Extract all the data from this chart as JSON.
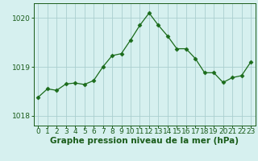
{
  "x": [
    0,
    1,
    2,
    3,
    4,
    5,
    6,
    7,
    8,
    9,
    10,
    11,
    12,
    13,
    14,
    15,
    16,
    17,
    18,
    19,
    20,
    21,
    22,
    23
  ],
  "y": [
    1018.38,
    1018.55,
    1018.52,
    1018.65,
    1018.67,
    1018.64,
    1018.72,
    1019.0,
    1019.23,
    1019.27,
    1019.55,
    1019.85,
    1020.1,
    1019.85,
    1019.63,
    1019.37,
    1019.37,
    1019.17,
    1018.88,
    1018.88,
    1018.68,
    1018.78,
    1018.82,
    1019.1
  ],
  "line_color": "#1a6b1a",
  "marker": "D",
  "marker_size": 2.5,
  "bg_color": "#d6f0ef",
  "grid_color": "#aacfcf",
  "xlabel": "Graphe pression niveau de la mer (hPa)",
  "xlabel_color": "#1a5c1a",
  "xlabel_fontsize": 7.5,
  "tick_color": "#1a5c1a",
  "tick_fontsize": 6.5,
  "ylim": [
    1017.8,
    1020.3
  ],
  "yticks": [
    1018,
    1019,
    1020
  ],
  "xlim": [
    -0.5,
    23.5
  ],
  "xticks": [
    0,
    1,
    2,
    3,
    4,
    5,
    6,
    7,
    8,
    9,
    10,
    11,
    12,
    13,
    14,
    15,
    16,
    17,
    18,
    19,
    20,
    21,
    22,
    23
  ]
}
